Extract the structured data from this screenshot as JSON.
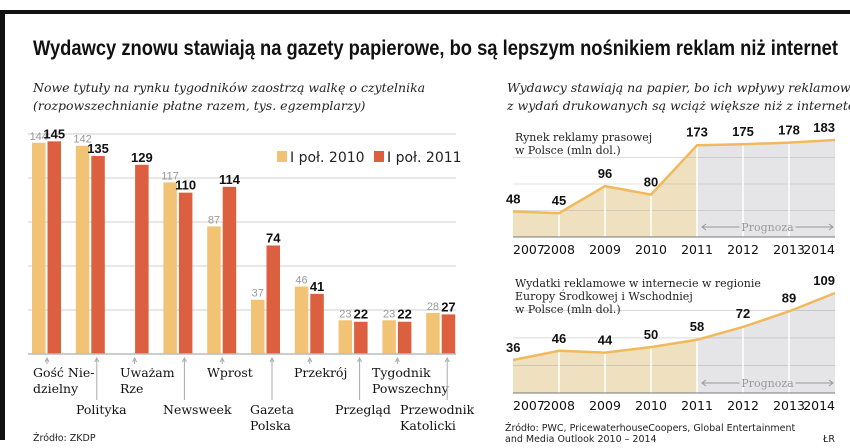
{
  "header": {
    "title": "Wydawcy znowu stawiają na gazety papierowe, bo są lepszym nośnikiem reklam niż internet"
  },
  "credit": "ŁR",
  "colors": {
    "series_2010": "#f2c374",
    "series_2011": "#dc5f3f",
    "line": "#f0b95c",
    "fill_actual": "#efe1bf",
    "fill_forecast": "#e5e5e8"
  },
  "chart_data": [
    {
      "type": "bar",
      "subtitle_lines": [
        "Nowe tytuły na rynku tygodników zaostrzą walkę o czytelnika",
        "(rozpowszechnianie płatne razem, tys. egzemplarzy)"
      ],
      "categories": [
        [
          "Gość Nie-",
          "dzielny"
        ],
        [
          "Polityka"
        ],
        [
          "Uważam",
          "Rze"
        ],
        [
          "Newsweek"
        ],
        [
          "Wprost"
        ],
        [
          "Gazeta",
          "Polska"
        ],
        [
          "Przekrój"
        ],
        [
          "Przegląd"
        ],
        [
          "Tygodnik",
          "Powszechny"
        ],
        [
          "Przewodnik",
          "Katolicki"
        ]
      ],
      "series": [
        {
          "name": "I poł. 2010",
          "values": [
            144,
            142,
            null,
            117,
            87,
            37,
            46,
            23,
            23,
            28
          ]
        },
        {
          "name": "I poł. 2011",
          "values": [
            145,
            135,
            129,
            110,
            114,
            74,
            41,
            22,
            22,
            27
          ]
        }
      ],
      "ylim": [
        0,
        150
      ],
      "grid": true,
      "legend": "top-right",
      "source": "Źródło: ZKDP"
    },
    {
      "type": "area",
      "subtitle_lines": [
        "Wydawcy stawiają na papier, bo ich wpływy reklamowe",
        "z wydań drukowanych są wciąż większe niż z internetowych"
      ],
      "title_lines": [
        "Rynek reklamy prasowej",
        "w Polsce (mln dol.)"
      ],
      "x": [
        "2007",
        "2008",
        "2009",
        "2010",
        "2011",
        "2012",
        "2013",
        "2014"
      ],
      "values": [
        48,
        45,
        96,
        80,
        173,
        175,
        178,
        183
      ],
      "forecast_from": "2011",
      "forecast_label": "Prognoza",
      "ylim": [
        0,
        183
      ],
      "grid": true
    },
    {
      "type": "area",
      "title_lines": [
        "Wydatki reklamowe w internecie w regionie",
        "Europy Środkowej i Wschodniej",
        "w Polsce (mln dol.)"
      ],
      "x": [
        "2007",
        "2008",
        "2009",
        "2010",
        "2011",
        "2012",
        "2013",
        "2014"
      ],
      "values": [
        36,
        46,
        44,
        50,
        58,
        72,
        89,
        109
      ],
      "forecast_from": "2011",
      "forecast_label": "Prognoza",
      "ylim": [
        0,
        109
      ],
      "grid": true,
      "source_lines": [
        "Źródło: PWC, PricewaterhouseCoopers, Global Entertainment",
        "and  Media Outlook 2010 – 2014"
      ]
    }
  ]
}
